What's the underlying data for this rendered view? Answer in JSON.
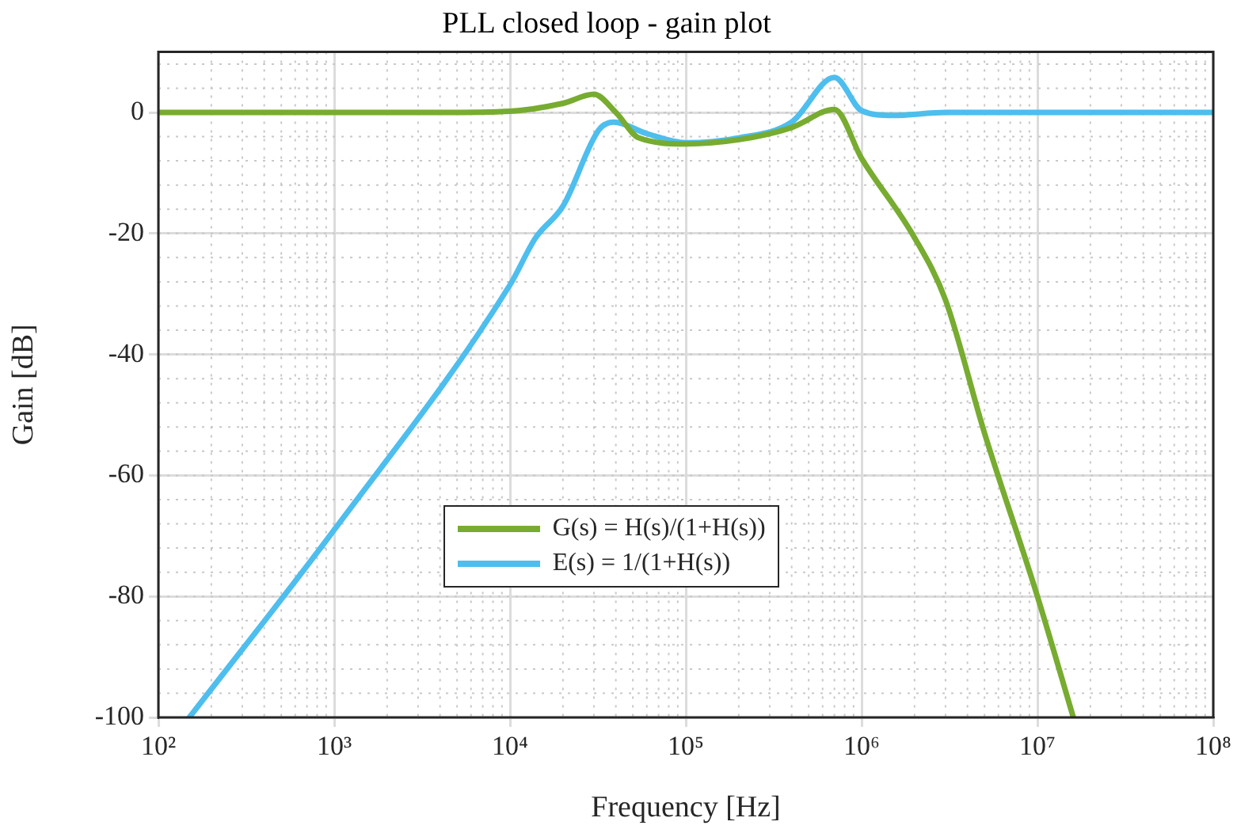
{
  "chart_data": {
    "type": "line",
    "title": "PLL closed loop - gain plot",
    "xlabel": "Frequency [Hz]",
    "ylabel": "Gain [dB]",
    "log": "x",
    "xlim": [
      100,
      100000000
    ],
    "ylim": [
      -100,
      10
    ],
    "xticks": [
      {
        "value": 100,
        "label": "10²"
      },
      {
        "value": 1000,
        "label": "10³"
      },
      {
        "value": 10000,
        "label": "10⁴"
      },
      {
        "value": 100000,
        "label": "10⁵"
      },
      {
        "value": 1000000,
        "label": "10⁶"
      },
      {
        "value": 10000000,
        "label": "10⁷"
      },
      {
        "value": 100000000,
        "label": "10⁸"
      }
    ],
    "yticks": [
      -100,
      -80,
      -60,
      -40,
      -20,
      0
    ],
    "grid": true,
    "legend": "bottom left",
    "marker": "none",
    "line_style": "solid",
    "series": [
      {
        "name": "G(s) = H(s)/(1+H(s))",
        "color": "#77ac30",
        "x": [
          100,
          1000,
          4000,
          10000,
          20000,
          30000,
          40000,
          54000,
          100000,
          200000,
          400000,
          700000,
          1000000,
          2000000,
          3000000,
          5000000,
          10000000,
          16000000
        ],
        "values": [
          0,
          0,
          0,
          0.2,
          1.5,
          3,
          0,
          -4.2,
          -5.2,
          -4.5,
          -2.5,
          0.5,
          -7.6,
          -20.7,
          -31,
          -53,
          -80,
          -100
        ]
      },
      {
        "name": "E(s) = 1/(1+H(s))",
        "color": "#4dbeee",
        "x": [
          150,
          1000,
          10000,
          14000,
          20000,
          32000,
          39000,
          60000,
          100000,
          200000,
          400000,
          700000,
          1000000,
          1500000,
          3000000,
          10000000,
          100000000
        ],
        "values": [
          -100,
          -69,
          -28.5,
          -20.7,
          -15.5,
          -2.9,
          -1.6,
          -3.5,
          -5,
          -4.2,
          -1.6,
          5.8,
          0.3,
          -0.5,
          0,
          0,
          0
        ]
      }
    ]
  }
}
